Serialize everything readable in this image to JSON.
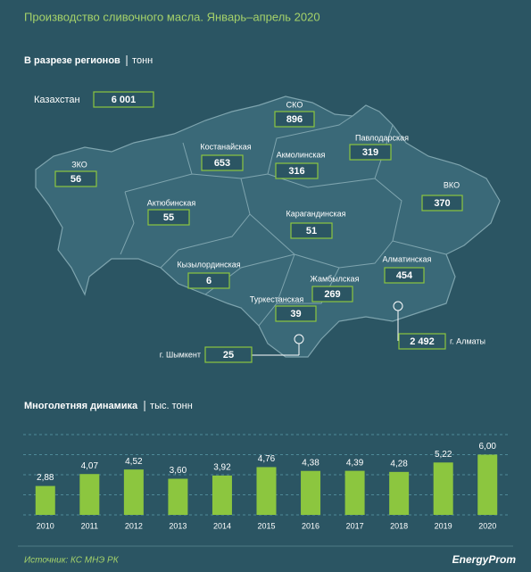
{
  "title": "Производство сливочного масла. Январь–апрель 2020",
  "map": {
    "title": "В разрезе регионов",
    "unit": "тонн",
    "regions": [
      {
        "name": "Казахстан",
        "value": 6001,
        "label": "6 001"
      },
      {
        "name": "СКО",
        "value": 896
      },
      {
        "name": "Костанайская",
        "value": 653
      },
      {
        "name": "Акмолинская",
        "value": 316
      },
      {
        "name": "Павлодарская",
        "value": 319
      },
      {
        "name": "ЗКО",
        "value": 56
      },
      {
        "name": "Актюбинская",
        "value": 55
      },
      {
        "name": "ВКО",
        "value": 370
      },
      {
        "name": "Карагандинская",
        "value": 51
      },
      {
        "name": "Алматинская",
        "value": 454
      },
      {
        "name": "Кызылординская",
        "value": 6
      },
      {
        "name": "Жамбылская",
        "value": 269
      },
      {
        "name": "Туркестанская",
        "value": 39
      },
      {
        "name": "г. Шымкент",
        "value": 25
      },
      {
        "name": "г. Алматы",
        "value": 2492,
        "label": "2 492"
      }
    ]
  },
  "chart_data": {
    "type": "bar",
    "title": "Многолетняя динамика",
    "unit": "тыс. тонн",
    "categories": [
      "2010",
      "2011",
      "2012",
      "2013",
      "2014",
      "2015",
      "2016",
      "2017",
      "2018",
      "2019",
      "2020"
    ],
    "values": [
      2.88,
      4.07,
      4.52,
      3.6,
      3.92,
      4.76,
      4.38,
      4.39,
      4.28,
      5.22,
      6.0
    ],
    "value_labels": [
      "2,88",
      "4,07",
      "4,52",
      "3,60",
      "3,92",
      "4,76",
      "4,38",
      "4,39",
      "4,28",
      "5,22",
      "6,00"
    ],
    "color": "#8cc63f",
    "ylim": [
      0,
      8
    ],
    "yticks": [
      0,
      2,
      4,
      6,
      8
    ],
    "grid": true
  },
  "footer": {
    "source": "Источник: КС МНЭ РК",
    "brand": "EnergyProm"
  }
}
